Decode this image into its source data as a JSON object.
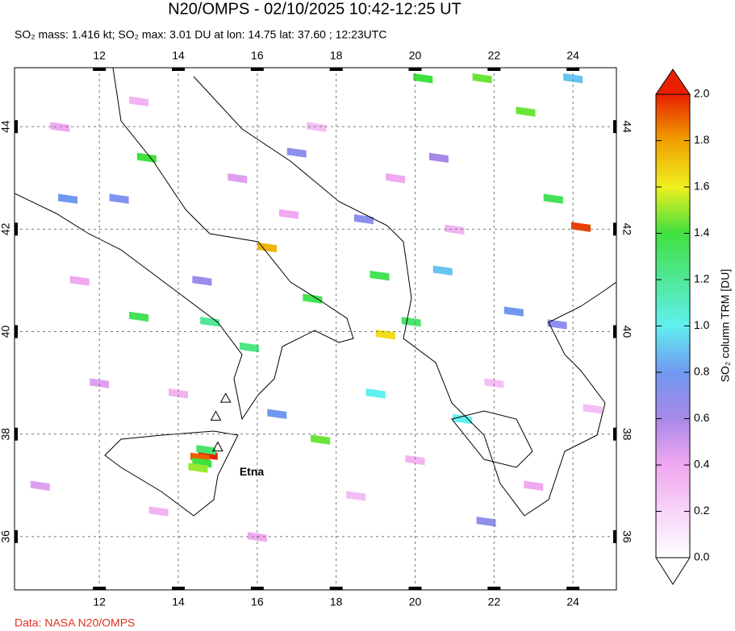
{
  "header": {
    "title": "N20/OMPS - 02/10/2025 10:42-12:25 UT",
    "subtitle": "SO₂ mass: 1.416 kt; SO₂ max: 3.01 DU at lon: 14.75 lat: 37.60 ; 12:23UTC"
  },
  "map": {
    "lonlim": [
      9.85,
      25.1
    ],
    "latlim": [
      34.96,
      45.15
    ],
    "lonticks": [
      12,
      14,
      16,
      18,
      20,
      22,
      24
    ],
    "latticks": [
      36,
      38,
      40,
      42,
      44
    ],
    "grid": true
  },
  "pixels": {
    "lon": [
      14.75,
      14.55,
      14.6,
      14.5,
      14.7,
      24.2,
      16.25,
      19.25,
      21.7,
      22.8,
      20.2,
      23.5,
      19.1,
      17.4,
      19.9,
      17.6,
      13.2,
      13.0,
      15.8,
      14.8,
      19.0,
      21.2,
      24.0,
      17.0,
      12.5,
      20.7,
      22.5,
      23.6,
      16.5,
      18.7,
      21.8,
      11.2,
      14.6,
      20.6,
      11.0,
      13.0,
      15.5,
      17.5,
      19.5,
      21.0,
      22.0,
      23.0,
      12.0,
      13.5,
      16.0,
      18.5,
      10.5,
      24.5,
      20.0,
      11.5,
      16.8,
      14.0
    ],
    "lat": [
      37.6,
      37.55,
      37.45,
      37.35,
      37.7,
      42.05,
      41.65,
      39.95,
      44.95,
      44.3,
      44.95,
      42.6,
      41.1,
      40.65,
      40.2,
      37.9,
      43.4,
      40.3,
      39.7,
      40.2,
      38.8,
      38.3,
      44.95,
      43.5,
      42.6,
      41.2,
      40.4,
      40.15,
      38.4,
      42.2,
      36.3,
      42.6,
      41.0,
      43.4,
      44.0,
      44.5,
      43.0,
      44.0,
      43.0,
      42.0,
      39.0,
      37.0,
      39.0,
      36.5,
      36.0,
      36.8,
      37.0,
      38.5,
      37.5,
      41.0,
      42.3,
      38.8
    ],
    "values": [
      3.01,
      1.9,
      1.4,
      1.5,
      1.3,
      1.95,
      1.75,
      1.65,
      1.45,
      1.45,
      1.4,
      1.35,
      1.35,
      1.35,
      1.3,
      1.45,
      1.4,
      1.35,
      1.25,
      1.2,
      1.0,
      1.0,
      0.9,
      0.7,
      0.75,
      0.9,
      0.8,
      0.7,
      0.8,
      0.7,
      0.7,
      0.8,
      0.65,
      0.6,
      0.4,
      0.35,
      0.45,
      0.3,
      0.4,
      0.35,
      0.3,
      0.4,
      0.45,
      0.35,
      0.4,
      0.3,
      0.45,
      0.3,
      0.35,
      0.4,
      0.4,
      0.35
    ]
  },
  "volcanoes": {
    "lon": [
      15.0,
      15.2,
      14.95
    ],
    "lat": [
      37.75,
      38.7,
      38.35
    ]
  },
  "annotations": [
    {
      "text": "Etna",
      "lon": 15.55,
      "lat": 37.25
    }
  ],
  "colorbar": {
    "label": "SO₂ column TRM [DU]",
    "lim": [
      0,
      2
    ],
    "ticks": [
      {
        "value": 0,
        "label": "0.0"
      },
      {
        "value": 0.2,
        "label": "0.2"
      },
      {
        "value": 0.4,
        "label": "0.4"
      },
      {
        "value": 0.6,
        "label": "0.6"
      },
      {
        "value": 0.8,
        "label": "0.8"
      },
      {
        "value": 1,
        "label": "1.0"
      },
      {
        "value": 1.2,
        "label": "1.2"
      },
      {
        "value": 1.4,
        "label": "1.4"
      },
      {
        "value": 1.6,
        "label": "1.6"
      },
      {
        "value": 1.8,
        "label": "1.8"
      },
      {
        "value": 2,
        "label": "2.0"
      }
    ],
    "colormap": [
      [
        0,
        "#ffffff"
      ],
      [
        0.4,
        "#f0a8f0"
      ],
      [
        0.6,
        "#a888e8"
      ],
      [
        0.8,
        "#7098f0"
      ],
      [
        1.0,
        "#60f0f0"
      ],
      [
        1.4,
        "#40e040"
      ],
      [
        1.6,
        "#f0f020"
      ],
      [
        1.8,
        "#f0a000"
      ],
      [
        2.0,
        "#e82000"
      ]
    ]
  },
  "credit": "Data: NASA N20/OMPS"
}
